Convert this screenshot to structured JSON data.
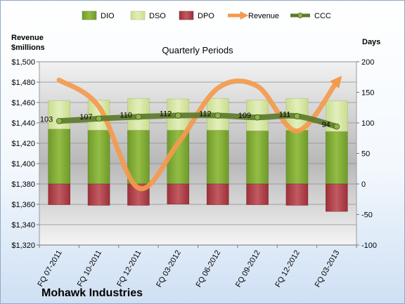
{
  "chart_data": {
    "type": "bar",
    "title": "Quarterly Periods",
    "company": "Mohawk Industries",
    "left_axis": {
      "label_line1": "Revenue",
      "label_line2": "$millions",
      "range": [
        1320,
        1500
      ],
      "step": 20
    },
    "right_axis": {
      "label": "Days",
      "range": [
        -100,
        200
      ],
      "step": 50
    },
    "categories": [
      "FQ 07-2011",
      "FQ 10-2011",
      "FQ 12-2011",
      "FQ 03-2012",
      "FQ 06-2012",
      "FQ 09-2012",
      "FQ 12-2012",
      "FQ 03-2013"
    ],
    "series": [
      {
        "name": "DIO",
        "kind": "stacked-bar-positive",
        "values": [
          90,
          88,
          88,
          88,
          88,
          87,
          88,
          86
        ]
      },
      {
        "name": "DSO",
        "kind": "stacked-bar-positive",
        "values": [
          46,
          49,
          52,
          51,
          52,
          50,
          52,
          50
        ]
      },
      {
        "name": "DPO",
        "kind": "bar-negative",
        "values": [
          -34,
          -35,
          -35,
          -33,
          -34,
          -34,
          -35,
          -45
        ]
      },
      {
        "name": "Revenue",
        "kind": "line-left-axis",
        "values": [
          1482,
          1456,
          1376,
          1420,
          1474,
          1476,
          1432,
          1480
        ]
      },
      {
        "name": "CCC",
        "kind": "line-right-axis",
        "values": [
          103,
          107,
          110,
          112,
          112,
          109,
          111,
          94
        ]
      }
    ],
    "ccc_labels": [
      "103",
      "107",
      "110",
      "112",
      "112",
      "109",
      "111",
      "94"
    ],
    "colors": {
      "dio": "#82a83a",
      "dso": "#d5e6a2",
      "dpo": "#b4454c",
      "revenue": "#f39a4e",
      "ccc": "#5d7a2c"
    },
    "legend_position": "top",
    "grid": true
  }
}
